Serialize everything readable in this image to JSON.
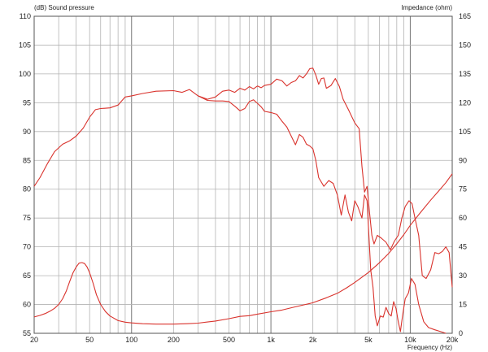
{
  "chart_data": {
    "type": "line",
    "left_label": "(dB)  Sound pressure",
    "right_label": "Impedance  (ohm)",
    "xlabel": "Frequency  (Hz)",
    "x_scale": "log",
    "xlim": [
      20,
      20000
    ],
    "ylim": [
      55,
      110
    ],
    "y2lim": [
      0,
      165
    ],
    "grid": true,
    "x_ticks": [
      {
        "label": "20",
        "value": 20
      },
      {
        "label": "50",
        "value": 50
      },
      {
        "label": "100",
        "value": 100
      },
      {
        "label": "200",
        "value": 200
      },
      {
        "label": "500",
        "value": 500
      },
      {
        "label": "1k",
        "value": 1000
      },
      {
        "label": "2k",
        "value": 2000
      },
      {
        "label": "5k",
        "value": 5000
      },
      {
        "label": "10k",
        "value": 10000
      },
      {
        "label": "20k",
        "value": 20000
      }
    ],
    "y_ticks": [
      "55",
      "60",
      "65",
      "70",
      "75",
      "80",
      "85",
      "90",
      "95",
      "100",
      "105",
      "110"
    ],
    "y2_ticks": [
      "0",
      "15",
      "30",
      "45",
      "60",
      "75",
      "90",
      "105",
      "120",
      "135",
      "150",
      "165"
    ],
    "series": [
      {
        "axis": "left",
        "color": "#d9322c",
        "points": [
          [
            20,
            80.5
          ],
          [
            22,
            82
          ],
          [
            25,
            84.5
          ],
          [
            28,
            86.5
          ],
          [
            32,
            87.8
          ],
          [
            36,
            88.4
          ],
          [
            40,
            89.2
          ],
          [
            45,
            90.6
          ],
          [
            50,
            92.5
          ],
          [
            55,
            93.8
          ],
          [
            60,
            94
          ],
          [
            70,
            94.1
          ],
          [
            80,
            94.6
          ],
          [
            90,
            96
          ],
          [
            100,
            96.2
          ],
          [
            120,
            96.6
          ],
          [
            150,
            97
          ],
          [
            200,
            97.1
          ],
          [
            230,
            96.8
          ],
          [
            260,
            97.3
          ],
          [
            300,
            96.2
          ],
          [
            350,
            95.6
          ],
          [
            400,
            96
          ],
          [
            450,
            97
          ],
          [
            500,
            97.2
          ],
          [
            550,
            96.8
          ],
          [
            600,
            97.5
          ],
          [
            650,
            97.2
          ],
          [
            700,
            97.8
          ],
          [
            750,
            97.4
          ],
          [
            800,
            97.9
          ],
          [
            850,
            97.6
          ],
          [
            900,
            98
          ],
          [
            1000,
            98.2
          ],
          [
            1100,
            99.1
          ],
          [
            1200,
            98.8
          ],
          [
            1300,
            97.9
          ],
          [
            1400,
            98.5
          ],
          [
            1500,
            98.8
          ],
          [
            1600,
            99.7
          ],
          [
            1700,
            99.3
          ],
          [
            1800,
            100
          ],
          [
            1900,
            100.9
          ],
          [
            2000,
            101
          ],
          [
            2100,
            99.8
          ],
          [
            2200,
            98.2
          ],
          [
            2300,
            99.2
          ],
          [
            2400,
            99.3
          ],
          [
            2500,
            97.5
          ],
          [
            2700,
            98
          ],
          [
            2900,
            99.2
          ],
          [
            3100,
            97.8
          ],
          [
            3300,
            95.6
          ],
          [
            3600,
            93.8
          ],
          [
            4000,
            91.5
          ],
          [
            4300,
            90.5
          ],
          [
            4500,
            84
          ],
          [
            4700,
            79.5
          ],
          [
            4900,
            80.5
          ],
          [
            5100,
            76
          ],
          [
            5300,
            72
          ],
          [
            5500,
            70.5
          ],
          [
            5800,
            72
          ],
          [
            6200,
            71.5
          ],
          [
            6700,
            70.8
          ],
          [
            7200,
            69.5
          ],
          [
            7700,
            71
          ],
          [
            8200,
            72
          ],
          [
            8700,
            75
          ],
          [
            9200,
            77
          ],
          [
            9800,
            78
          ],
          [
            10300,
            77.5
          ],
          [
            10800,
            75
          ],
          [
            11500,
            72
          ],
          [
            12200,
            65
          ],
          [
            13000,
            64.5
          ],
          [
            14000,
            66
          ],
          [
            15000,
            69
          ],
          [
            16000,
            68.8
          ],
          [
            17000,
            69.2
          ],
          [
            18000,
            70
          ],
          [
            19000,
            69
          ],
          [
            20000,
            63
          ]
        ]
      },
      {
        "axis": "left",
        "color": "#d9322c",
        "points": [
          [
            300,
            96.2
          ],
          [
            350,
            95.4
          ],
          [
            400,
            95.3
          ],
          [
            450,
            95.3
          ],
          [
            500,
            95.2
          ],
          [
            550,
            94.4
          ],
          [
            600,
            93.6
          ],
          [
            650,
            94
          ],
          [
            700,
            95.2
          ],
          [
            750,
            95.5
          ],
          [
            800,
            94.9
          ],
          [
            850,
            94.3
          ],
          [
            900,
            93.5
          ],
          [
            1000,
            93.3
          ],
          [
            1100,
            93
          ],
          [
            1200,
            91.8
          ],
          [
            1300,
            90.8
          ],
          [
            1400,
            89.2
          ],
          [
            1500,
            87.7
          ],
          [
            1600,
            89.5
          ],
          [
            1700,
            89
          ],
          [
            1800,
            87.8
          ],
          [
            1900,
            87.5
          ],
          [
            2000,
            87
          ],
          [
            2100,
            85
          ],
          [
            2200,
            82
          ],
          [
            2400,
            80.5
          ],
          [
            2600,
            81.5
          ],
          [
            2800,
            81
          ],
          [
            3000,
            79
          ],
          [
            3200,
            75.5
          ],
          [
            3400,
            79
          ],
          [
            3600,
            76
          ],
          [
            3800,
            74.5
          ],
          [
            4000,
            78
          ],
          [
            4200,
            77
          ],
          [
            4500,
            75
          ],
          [
            4700,
            79
          ],
          [
            4900,
            78
          ],
          [
            5200,
            66
          ],
          [
            5400,
            63
          ],
          [
            5600,
            58
          ],
          [
            5800,
            56.3
          ],
          [
            6100,
            58
          ],
          [
            6400,
            57.8
          ],
          [
            6700,
            59.5
          ],
          [
            7000,
            58.4
          ],
          [
            7300,
            58
          ],
          [
            7600,
            60.5
          ],
          [
            7900,
            59.3
          ],
          [
            8200,
            57
          ],
          [
            8500,
            55.3
          ],
          [
            8800,
            58
          ],
          [
            9200,
            61
          ],
          [
            9700,
            62
          ],
          [
            10200,
            64.5
          ],
          [
            10800,
            63.5
          ],
          [
            11500,
            60
          ],
          [
            12500,
            57
          ],
          [
            13500,
            56
          ],
          [
            15000,
            55.6
          ],
          [
            16500,
            55.3
          ],
          [
            18000,
            54.5
          ]
        ]
      },
      {
        "axis": "right",
        "color": "#d9322c",
        "points": [
          [
            20,
            8.5
          ],
          [
            22,
            9.3
          ],
          [
            24,
            10.3
          ],
          [
            26,
            11.5
          ],
          [
            28,
            13
          ],
          [
            30,
            15
          ],
          [
            32,
            18
          ],
          [
            34,
            22
          ],
          [
            36,
            27
          ],
          [
            38,
            31.5
          ],
          [
            40,
            34.5
          ],
          [
            42,
            36.5
          ],
          [
            44,
            36.8
          ],
          [
            46,
            36.3
          ],
          [
            48,
            34.5
          ],
          [
            50,
            31.5
          ],
          [
            53,
            26
          ],
          [
            56,
            20
          ],
          [
            60,
            15
          ],
          [
            65,
            11.3
          ],
          [
            70,
            9
          ],
          [
            80,
            6.6
          ],
          [
            90,
            5.8
          ],
          [
            100,
            5.4
          ],
          [
            120,
            5
          ],
          [
            150,
            4.8
          ],
          [
            200,
            4.8
          ],
          [
            250,
            5
          ],
          [
            300,
            5.3
          ],
          [
            400,
            6.4
          ],
          [
            500,
            7.6
          ],
          [
            600,
            8.8
          ],
          [
            700,
            9.2
          ],
          [
            800,
            10
          ],
          [
            1000,
            11.2
          ],
          [
            1200,
            12.1
          ],
          [
            1500,
            13.8
          ],
          [
            2000,
            15.9
          ],
          [
            2500,
            18.5
          ],
          [
            3000,
            20.8
          ],
          [
            3500,
            23.7
          ],
          [
            4000,
            26.5
          ],
          [
            5000,
            31.6
          ],
          [
            6000,
            36.7
          ],
          [
            7000,
            41.6
          ],
          [
            8000,
            46.6
          ],
          [
            9000,
            51.4
          ],
          [
            10000,
            56.2
          ],
          [
            12000,
            63.4
          ],
          [
            14000,
            69.3
          ],
          [
            16000,
            74.1
          ],
          [
            18000,
            78.4
          ],
          [
            20000,
            83
          ]
        ]
      }
    ]
  }
}
